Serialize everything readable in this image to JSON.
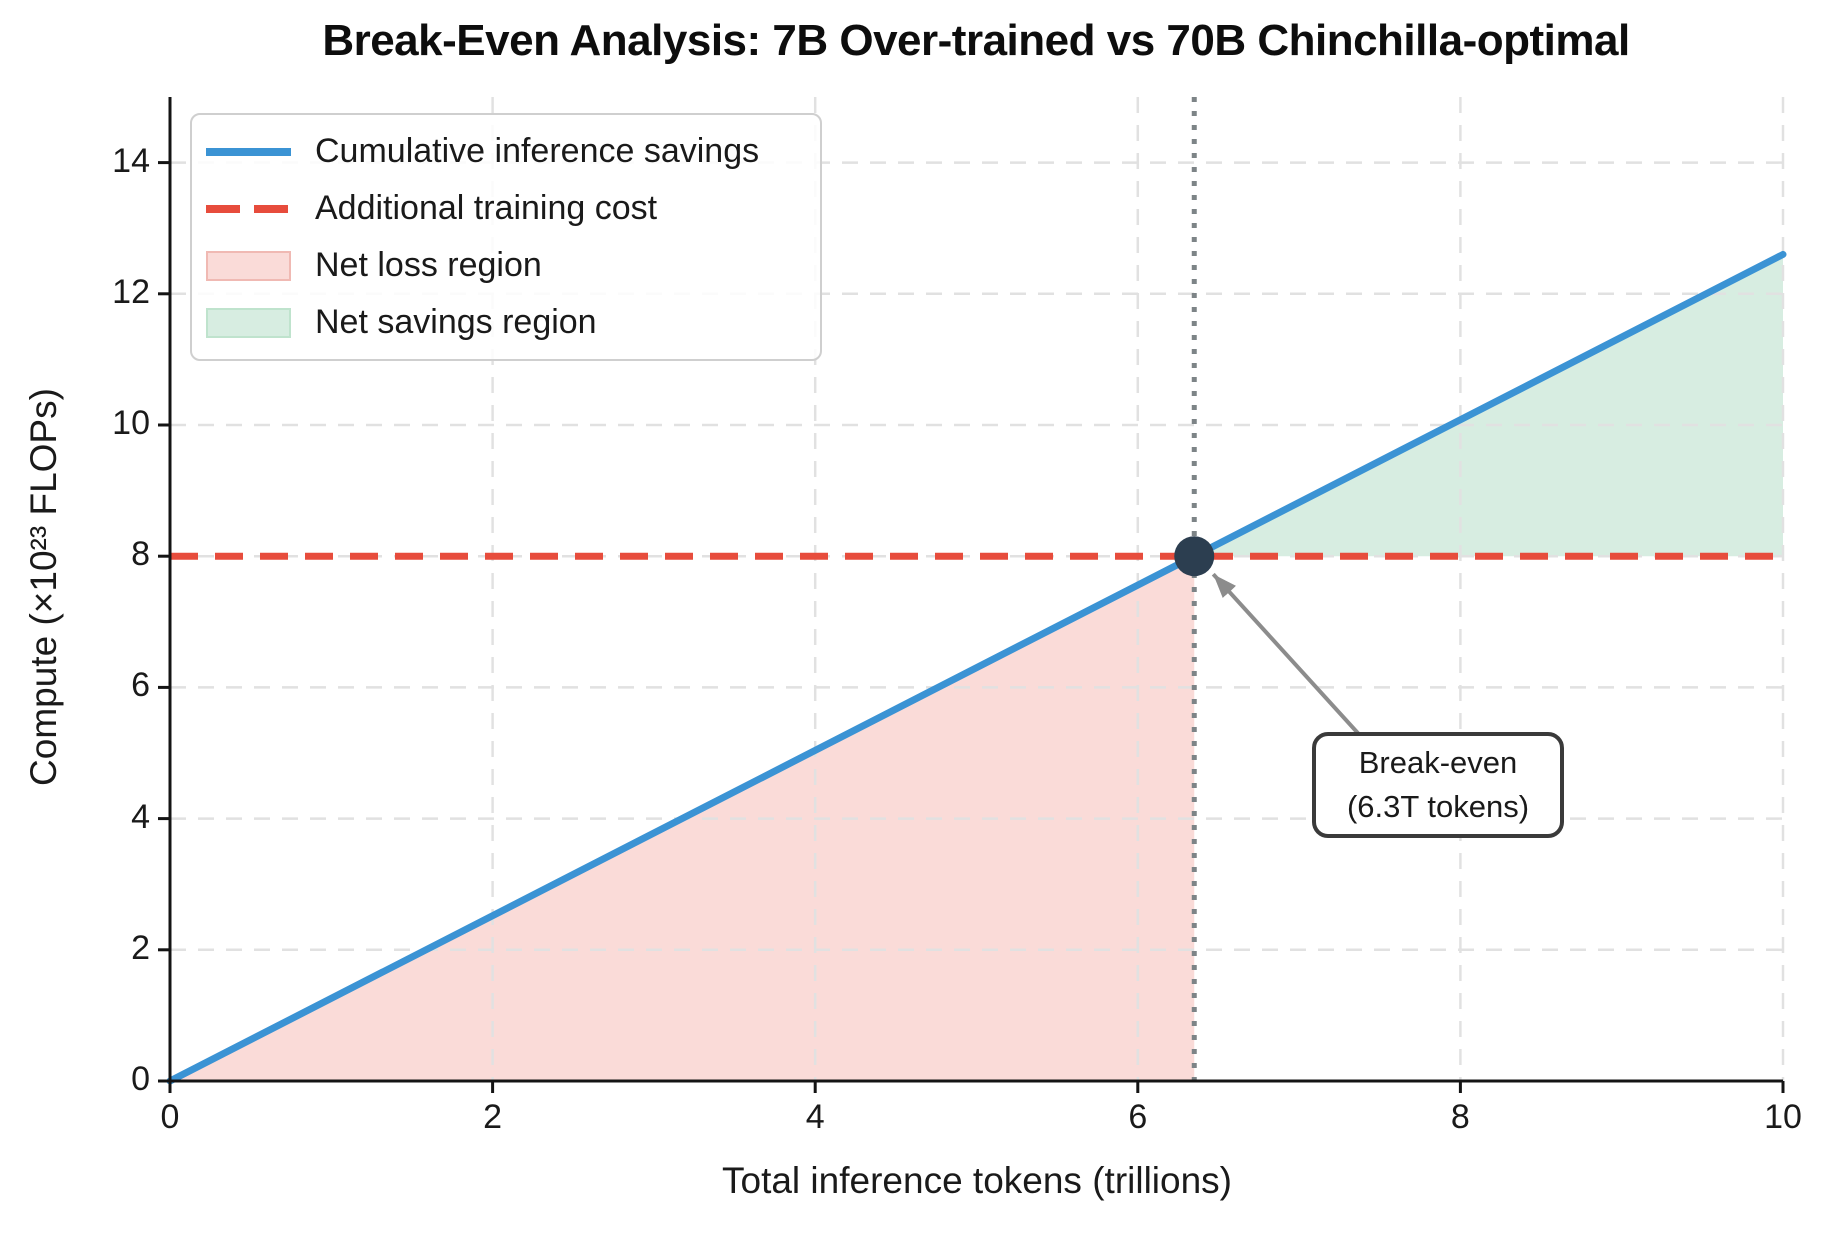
{
  "title": "Break-Even Analysis: 7B Over-trained vs 70B Chinchilla-optimal",
  "annotation": {
    "line1": "Break-even",
    "line2": "(6.3T tokens)"
  },
  "legend": {
    "items": [
      {
        "label": "Cumulative inference savings",
        "type": "line",
        "color": "#3b93d4"
      },
      {
        "label": "Additional training cost",
        "type": "dashed-line",
        "color": "#e74c3c"
      },
      {
        "label": "Net loss region",
        "type": "patch",
        "color": "#fadbd8",
        "border": "#f0b9b3"
      },
      {
        "label": "Net savings region",
        "type": "patch",
        "color": "#d7ede1",
        "border": "#bfe3cd"
      }
    ]
  },
  "chart_data": {
    "type": "line",
    "title": "Break-Even Analysis: 7B Over-trained vs 70B Chinchilla-optimal",
    "xlabel": "Total inference tokens (trillions)",
    "ylabel": "Compute (×10²³ FLOPs)",
    "xlim": [
      0,
      10
    ],
    "ylim": [
      0,
      15
    ],
    "xticks": [
      0,
      2,
      4,
      6,
      8,
      10
    ],
    "yticks": [
      0,
      2,
      4,
      6,
      8,
      10,
      12,
      14
    ],
    "grid": true,
    "legend_position": "upper left",
    "series": [
      {
        "name": "Cumulative inference savings",
        "style": "solid",
        "color": "#3b93d4",
        "x": [
          0,
          10
        ],
        "y": [
          0,
          12.6
        ]
      },
      {
        "name": "Additional training cost",
        "style": "dashed",
        "color": "#e74c3c",
        "x": [
          0,
          10
        ],
        "y": [
          8,
          8
        ]
      }
    ],
    "regions": [
      {
        "name": "Net loss region",
        "color": "#fadbd8",
        "vertices": [
          [
            0,
            0
          ],
          [
            6.35,
            0
          ],
          [
            6.35,
            8
          ]
        ]
      },
      {
        "name": "Net savings region",
        "color": "#d7ede1",
        "vertices": [
          [
            6.35,
            8
          ],
          [
            10,
            8
          ],
          [
            10,
            12.6
          ]
        ]
      }
    ],
    "breakeven": {
      "x": 6.35,
      "y": 8,
      "label": "Break-even (6.3T tokens)",
      "vline_color": "#7d8487",
      "dot_color": "#2c3e50",
      "arrow_color": "#8c8c8c"
    }
  }
}
